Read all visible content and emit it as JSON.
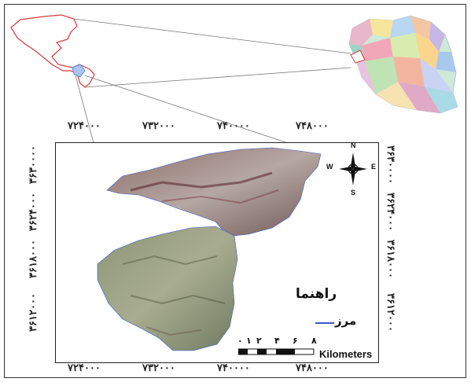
{
  "map": {
    "x_coords_top": [
      "۷۲۴۰۰۰",
      "۷۳۲۰۰۰",
      "۷۴۰۰۰۰",
      "۷۴۸۰۰۰"
    ],
    "x_coords_bottom": [
      "۷۲۴۰۰۰",
      "۷۳۲۰۰۰",
      "۷۴۰۰۰۰",
      "۷۴۸۰۰۰"
    ],
    "y_coords_left": [
      "۳۶۳۰۰۰۰",
      "۳۶۲۴۰۰۰",
      "۳۶۱۸۰۰۰",
      "۳۶۱۲۰۰۰"
    ],
    "y_coords_right": [
      "۳۶۳۰۰۰۰",
      "۳۶۲۴۰۰۰",
      "۳۶۱۸۰۰۰",
      "۳۶۱۲۰۰۰"
    ],
    "legend": {
      "title": "راهنما",
      "item_label": "مرز",
      "item_color": "#3a5bc7"
    },
    "scale_bar": {
      "numbers": [
        "۰",
        "۱",
        "۲",
        "۴",
        "۶",
        "۸"
      ],
      "units": "Kilometers"
    },
    "compass": {
      "n": "N",
      "s": "S",
      "e": "E",
      "w": "W"
    },
    "colors": {
      "province_outline": "#d63a3a",
      "study_area_marker": "#5b8fd6",
      "leader_line": "#777777"
    }
  }
}
